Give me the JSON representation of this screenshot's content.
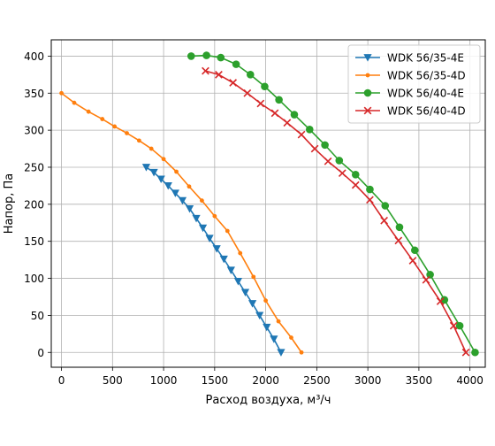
{
  "chart_data": {
    "type": "line",
    "title": "",
    "xlabel": "Расход воздуха, м³/ч",
    "ylabel": "Напор, Па",
    "xlim": [
      -100,
      4150
    ],
    "ylim": [
      -20,
      422
    ],
    "xticks": [
      0,
      500,
      1000,
      1500,
      2000,
      2500,
      3000,
      3500,
      4000
    ],
    "yticks": [
      0,
      50,
      100,
      150,
      200,
      250,
      300,
      350,
      400
    ],
    "xtick_labels": [
      "0",
      "500",
      "1000",
      "1500",
      "2000",
      "2500",
      "3000",
      "3500",
      "4000"
    ],
    "ytick_labels": [
      "0",
      "50",
      "100",
      "150",
      "200",
      "250",
      "300",
      "350",
      "400"
    ],
    "grid": true,
    "legend_position": "top-right",
    "series": [
      {
        "name": "WDK 56/35-4E",
        "color": "#1f77b4",
        "marker": "triangle-down",
        "x": [
          830,
          905,
          975,
          1045,
          1115,
          1185,
          1255,
          1320,
          1385,
          1450,
          1520,
          1590,
          1660,
          1730,
          1800,
          1870,
          1940,
          2010,
          2080,
          2150
        ],
        "y": [
          250,
          243,
          234,
          225,
          215,
          205,
          194,
          181,
          168,
          154,
          140,
          126,
          111,
          96,
          81,
          66,
          50,
          34,
          18,
          0
        ]
      },
      {
        "name": "WDK 56/35-4D",
        "color": "#ff7f0e",
        "marker": "point",
        "x": [
          0,
          125,
          265,
          400,
          520,
          640,
          760,
          880,
          1000,
          1125,
          1250,
          1375,
          1500,
          1625,
          1750,
          1880,
          2000,
          2125,
          2250,
          2350
        ],
        "y": [
          350,
          337,
          325,
          315,
          305,
          296,
          286,
          275,
          261,
          244,
          224,
          205,
          184,
          164,
          134,
          102,
          70,
          42,
          20,
          0
        ]
      },
      {
        "name": "WDK 56/40-4E",
        "color": "#2ca02c",
        "marker": "circle",
        "x": [
          1270,
          1420,
          1560,
          1710,
          1850,
          1990,
          2130,
          2280,
          2430,
          2580,
          2720,
          2880,
          3020,
          3170,
          3310,
          3460,
          3610,
          3750,
          3900,
          4050
        ],
        "y": [
          400,
          401,
          398,
          389,
          375,
          359,
          341,
          321,
          301,
          280,
          259,
          240,
          220,
          198,
          169,
          138,
          105,
          71,
          36,
          0
        ]
      },
      {
        "name": "WDK 56/40-4D",
        "color": "#d62728",
        "marker": "x",
        "x": [
          1410,
          1540,
          1680,
          1820,
          1950,
          2090,
          2210,
          2350,
          2480,
          2610,
          2750,
          2880,
          3020,
          3160,
          3300,
          3440,
          3570,
          3710,
          3840,
          3960
        ],
        "y": [
          380,
          375,
          364,
          350,
          336,
          323,
          310,
          294,
          275,
          258,
          242,
          226,
          206,
          178,
          151,
          124,
          98,
          69,
          36,
          0
        ]
      }
    ]
  }
}
